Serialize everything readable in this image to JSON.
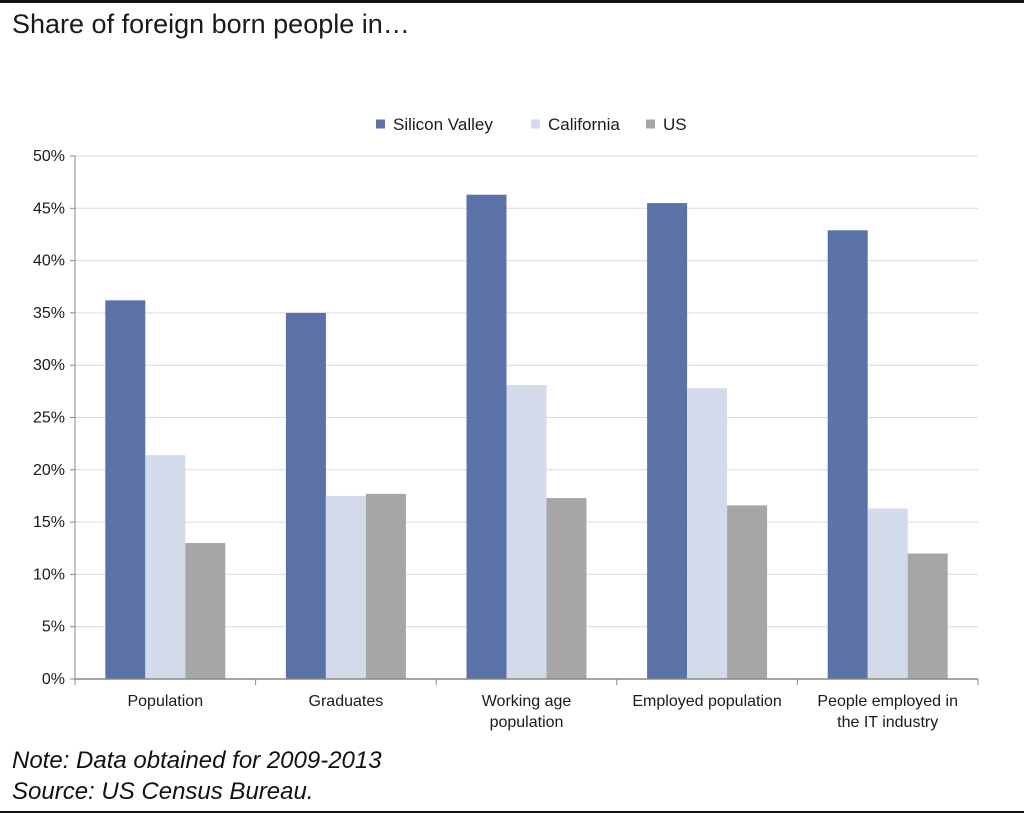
{
  "title": "Share of foreign born people in…",
  "note": "Note: Data obtained for 2009-2013",
  "source": "Source:  US Census Bureau.",
  "chart_data": {
    "type": "bar",
    "categories": [
      [
        "Population"
      ],
      [
        "Graduates"
      ],
      [
        "Working age",
        "population"
      ],
      [
        "Employed population"
      ],
      [
        "People employed in",
        "the IT industry"
      ]
    ],
    "series": [
      {
        "name": "Silicon Valley",
        "color": "#5b72a8",
        "values": [
          36.2,
          35.0,
          46.3,
          45.5,
          42.9
        ]
      },
      {
        "name": "California",
        "color": "#d3daea",
        "values": [
          21.4,
          17.5,
          28.1,
          27.8,
          16.3
        ]
      },
      {
        "name": "US",
        "color": "#a6a6a6",
        "values": [
          13.0,
          17.7,
          17.3,
          16.6,
          12.0
        ]
      }
    ],
    "ylim": [
      0,
      50
    ],
    "yticks": [
      "0%",
      "5%",
      "10%",
      "15%",
      "20%",
      "25%",
      "30%",
      "35%",
      "40%",
      "45%",
      "50%"
    ],
    "xlabel": "",
    "ylabel": "",
    "grid": true,
    "legend_position": "top-center"
  }
}
